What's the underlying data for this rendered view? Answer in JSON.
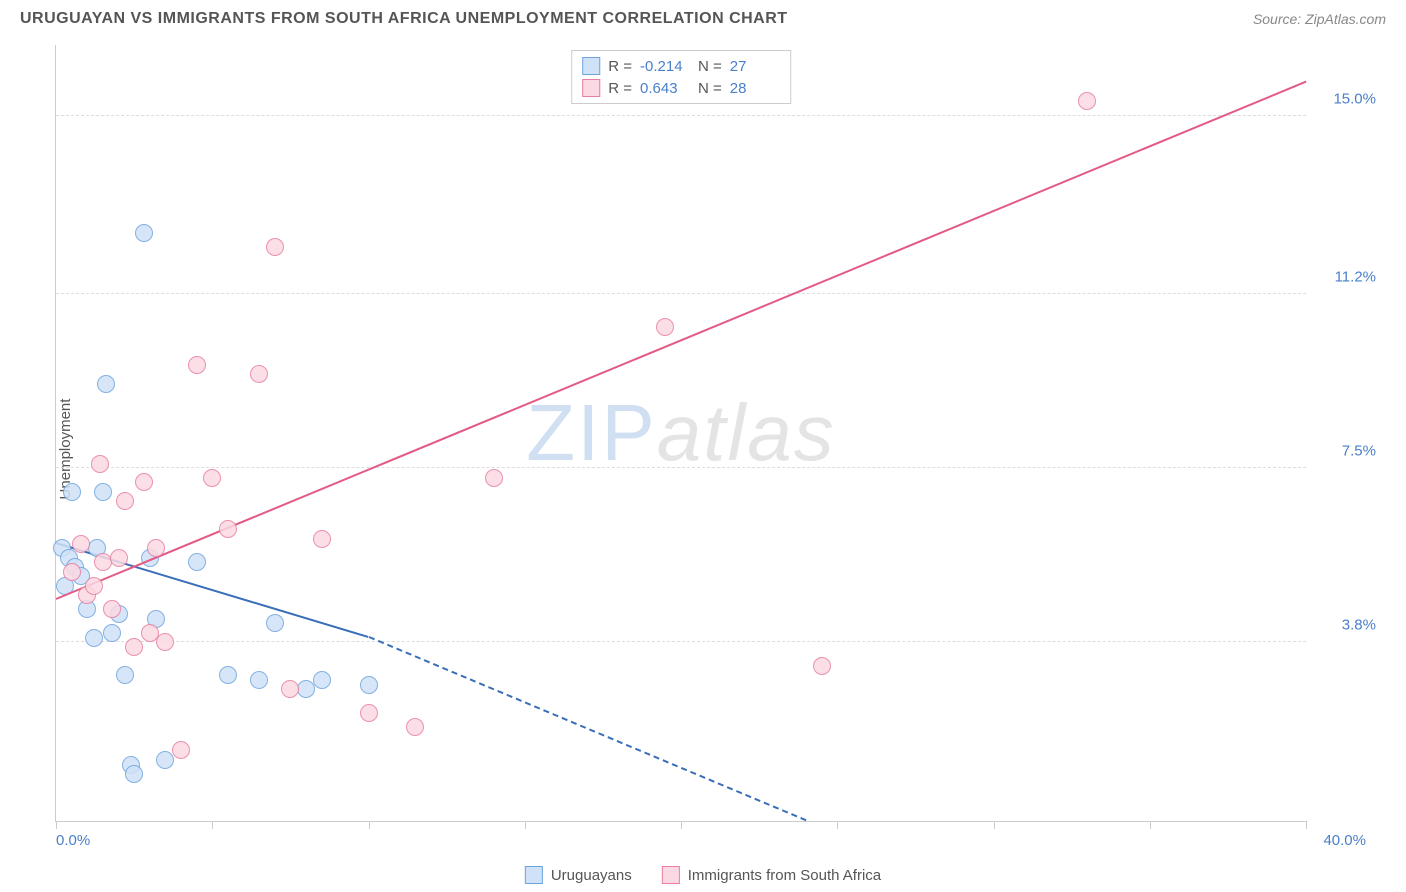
{
  "header": {
    "title": "URUGUAYAN VS IMMIGRANTS FROM SOUTH AFRICA UNEMPLOYMENT CORRELATION CHART",
    "source": "Source: ZipAtlas.com"
  },
  "watermark": {
    "part1": "ZIP",
    "part2": "atlas"
  },
  "chart": {
    "type": "scatter",
    "ylabel": "Unemployment",
    "xlim": [
      0.0,
      40.0
    ],
    "ylim": [
      0.0,
      16.5
    ],
    "xlim_labels": {
      "min": "0.0%",
      "max": "40.0%"
    },
    "ytick_values": [
      3.8,
      7.5,
      11.2,
      15.0
    ],
    "ytick_labels": [
      "3.8%",
      "7.5%",
      "11.2%",
      "15.0%"
    ],
    "xtick_values": [
      0,
      5,
      10,
      15,
      20,
      25,
      30,
      35,
      40
    ],
    "background_color": "#ffffff",
    "grid_color": "#dddddd",
    "marker_radius": 9,
    "marker_stroke_width": 1,
    "series": [
      {
        "name": "Uruguayans",
        "fill": "#cfe2f7",
        "stroke": "#6fa3dd",
        "stats": {
          "R": "-0.214",
          "N": "27"
        },
        "points": [
          [
            0.2,
            5.8
          ],
          [
            0.3,
            5.0
          ],
          [
            0.4,
            5.6
          ],
          [
            0.5,
            7.0
          ],
          [
            0.6,
            5.4
          ],
          [
            0.8,
            5.2
          ],
          [
            1.0,
            4.5
          ],
          [
            1.2,
            3.9
          ],
          [
            1.3,
            5.8
          ],
          [
            1.5,
            7.0
          ],
          [
            1.6,
            9.3
          ],
          [
            1.8,
            4.0
          ],
          [
            2.0,
            4.4
          ],
          [
            2.2,
            3.1
          ],
          [
            2.4,
            1.2
          ],
          [
            2.5,
            1.0
          ],
          [
            2.8,
            12.5
          ],
          [
            3.0,
            5.6
          ],
          [
            3.2,
            4.3
          ],
          [
            3.5,
            1.3
          ],
          [
            4.5,
            5.5
          ],
          [
            5.5,
            3.1
          ],
          [
            6.5,
            3.0
          ],
          [
            7.0,
            4.2
          ],
          [
            8.0,
            2.8
          ],
          [
            8.5,
            3.0
          ],
          [
            10.0,
            2.9
          ]
        ],
        "trend": {
          "x1": 0.0,
          "y1": 5.9,
          "x2": 10.0,
          "y2": 3.9,
          "color": "#3a6fb8",
          "width": 2,
          "ext_x2": 24.0,
          "ext_y2": 0.0,
          "dash": "6,5"
        }
      },
      {
        "name": "Immigrants from South Africa",
        "fill": "#fbd9e2",
        "stroke": "#e87ea0",
        "stats": {
          "R": "0.643",
          "N": "28"
        },
        "points": [
          [
            0.5,
            5.3
          ],
          [
            0.8,
            5.9
          ],
          [
            1.0,
            4.8
          ],
          [
            1.2,
            5.0
          ],
          [
            1.4,
            7.6
          ],
          [
            1.5,
            5.5
          ],
          [
            1.8,
            4.5
          ],
          [
            2.0,
            5.6
          ],
          [
            2.2,
            6.8
          ],
          [
            2.5,
            3.7
          ],
          [
            2.8,
            7.2
          ],
          [
            3.0,
            4.0
          ],
          [
            3.2,
            5.8
          ],
          [
            3.5,
            3.8
          ],
          [
            4.0,
            1.5
          ],
          [
            4.5,
            9.7
          ],
          [
            5.0,
            7.3
          ],
          [
            5.5,
            6.2
          ],
          [
            6.5,
            9.5
          ],
          [
            7.0,
            12.2
          ],
          [
            7.5,
            2.8
          ],
          [
            8.5,
            6.0
          ],
          [
            10.0,
            2.3
          ],
          [
            11.5,
            2.0
          ],
          [
            14.0,
            7.3
          ],
          [
            19.5,
            10.5
          ],
          [
            24.5,
            3.3
          ],
          [
            33.0,
            15.3
          ]
        ],
        "trend": {
          "x1": 0.0,
          "y1": 4.7,
          "x2": 40.0,
          "y2": 15.7,
          "color": "#e35a84",
          "width": 2
        }
      }
    ]
  },
  "stats_box": {
    "rows": [
      {
        "swatch_fill": "#cfe2f7",
        "swatch_stroke": "#6fa3dd",
        "r_label": "R =",
        "r_val": "-0.214",
        "n_label": "N =",
        "n_val": "27"
      },
      {
        "swatch_fill": "#fbd9e2",
        "swatch_stroke": "#e87ea0",
        "r_label": "R =",
        "r_val": "0.643",
        "n_label": "N =",
        "n_val": "28"
      }
    ]
  },
  "legend": {
    "items": [
      {
        "fill": "#cfe2f7",
        "stroke": "#6fa3dd",
        "label": "Uruguayans"
      },
      {
        "fill": "#fbd9e2",
        "stroke": "#e87ea0",
        "label": "Immigrants from South Africa"
      }
    ]
  }
}
